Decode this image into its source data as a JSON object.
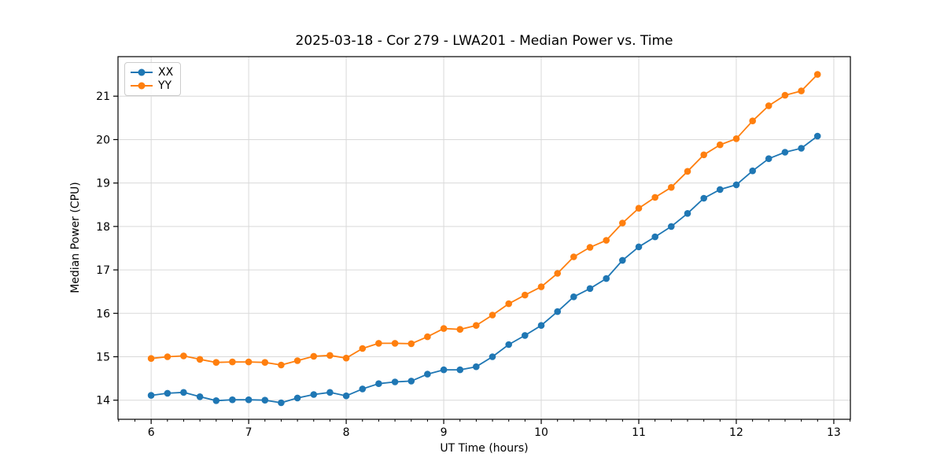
{
  "chart_data": {
    "type": "line",
    "title": "2025-03-18 - Cor 279 - LWA201 - Median Power vs. Time",
    "xlabel": "UT Time (hours)",
    "ylabel": "Median Power (CPU)",
    "xlim": [
      5.66,
      13.17
    ],
    "ylim": [
      13.56,
      21.91
    ],
    "x_ticks": [
      6,
      7,
      8,
      9,
      10,
      11,
      12,
      13
    ],
    "y_ticks": [
      14,
      15,
      16,
      17,
      18,
      19,
      20,
      21
    ],
    "x_minor_step": 0.16667,
    "grid": true,
    "legend_position": "upper left",
    "grid_color": "#d9d9d9",
    "spine_color": "#000000",
    "x": [
      6.0,
      6.167,
      6.333,
      6.5,
      6.667,
      6.833,
      7.0,
      7.167,
      7.333,
      7.5,
      7.667,
      7.833,
      8.0,
      8.167,
      8.333,
      8.5,
      8.667,
      8.833,
      9.0,
      9.167,
      9.333,
      9.5,
      9.667,
      9.833,
      10.0,
      10.167,
      10.333,
      10.5,
      10.667,
      10.833,
      11.0,
      11.167,
      11.333,
      11.5,
      11.667,
      11.833,
      12.0,
      12.167,
      12.333,
      12.5,
      12.667,
      12.833
    ],
    "series": [
      {
        "name": "XX",
        "color": "#1f77b4",
        "values": [
          14.11,
          14.16,
          14.18,
          14.08,
          13.99,
          14.01,
          14.01,
          14.0,
          13.94,
          14.05,
          14.13,
          14.18,
          14.1,
          14.26,
          14.38,
          14.42,
          14.44,
          14.6,
          14.7,
          14.7,
          14.77,
          15.0,
          15.28,
          15.49,
          15.72,
          16.04,
          16.38,
          16.57,
          16.8,
          17.22,
          17.53,
          17.76,
          18.0,
          18.3,
          18.65,
          18.85,
          18.96,
          19.28,
          19.56,
          19.71,
          19.8,
          20.08
        ]
      },
      {
        "name": "YY",
        "color": "#ff7f0e",
        "values": [
          14.96,
          15.0,
          15.02,
          14.94,
          14.87,
          14.88,
          14.88,
          14.87,
          14.81,
          14.91,
          15.01,
          15.03,
          14.97,
          15.19,
          15.31,
          15.31,
          15.3,
          15.46,
          15.65,
          15.63,
          15.72,
          15.96,
          16.22,
          16.42,
          16.61,
          16.92,
          17.3,
          17.52,
          17.68,
          18.08,
          18.42,
          18.67,
          18.9,
          19.27,
          19.65,
          19.88,
          20.02,
          20.43,
          20.78,
          21.02,
          21.12,
          21.5
        ]
      }
    ]
  }
}
